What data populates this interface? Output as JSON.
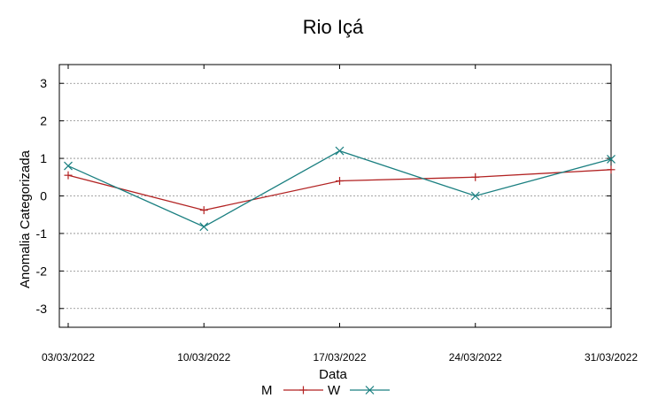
{
  "chart_data": {
    "type": "line",
    "title": "Rio Içá",
    "xlabel": "Data",
    "ylabel": "Anomalia Categorizada",
    "categories": [
      "03/03/2022",
      "10/03/2022",
      "17/03/2022",
      "24/03/2022",
      "31/03/2022"
    ],
    "ylim": [
      -3.5,
      3.5
    ],
    "yticks": [
      3,
      2,
      1,
      0,
      -1,
      -2,
      -3
    ],
    "ytick_labels": [
      "3",
      "2",
      "1",
      "0",
      "-1",
      "-2",
      "-3"
    ],
    "grid": true,
    "legend_position": "bottom-center",
    "series": [
      {
        "name": "M",
        "color": "#b22222",
        "marker": "plus",
        "values": [
          0.55,
          -0.38,
          0.4,
          0.5,
          0.7
        ]
      },
      {
        "name": "W",
        "color": "#1a7f80",
        "marker": "cross",
        "values": [
          0.8,
          -0.82,
          1.2,
          0.0,
          0.98
        ]
      }
    ]
  }
}
